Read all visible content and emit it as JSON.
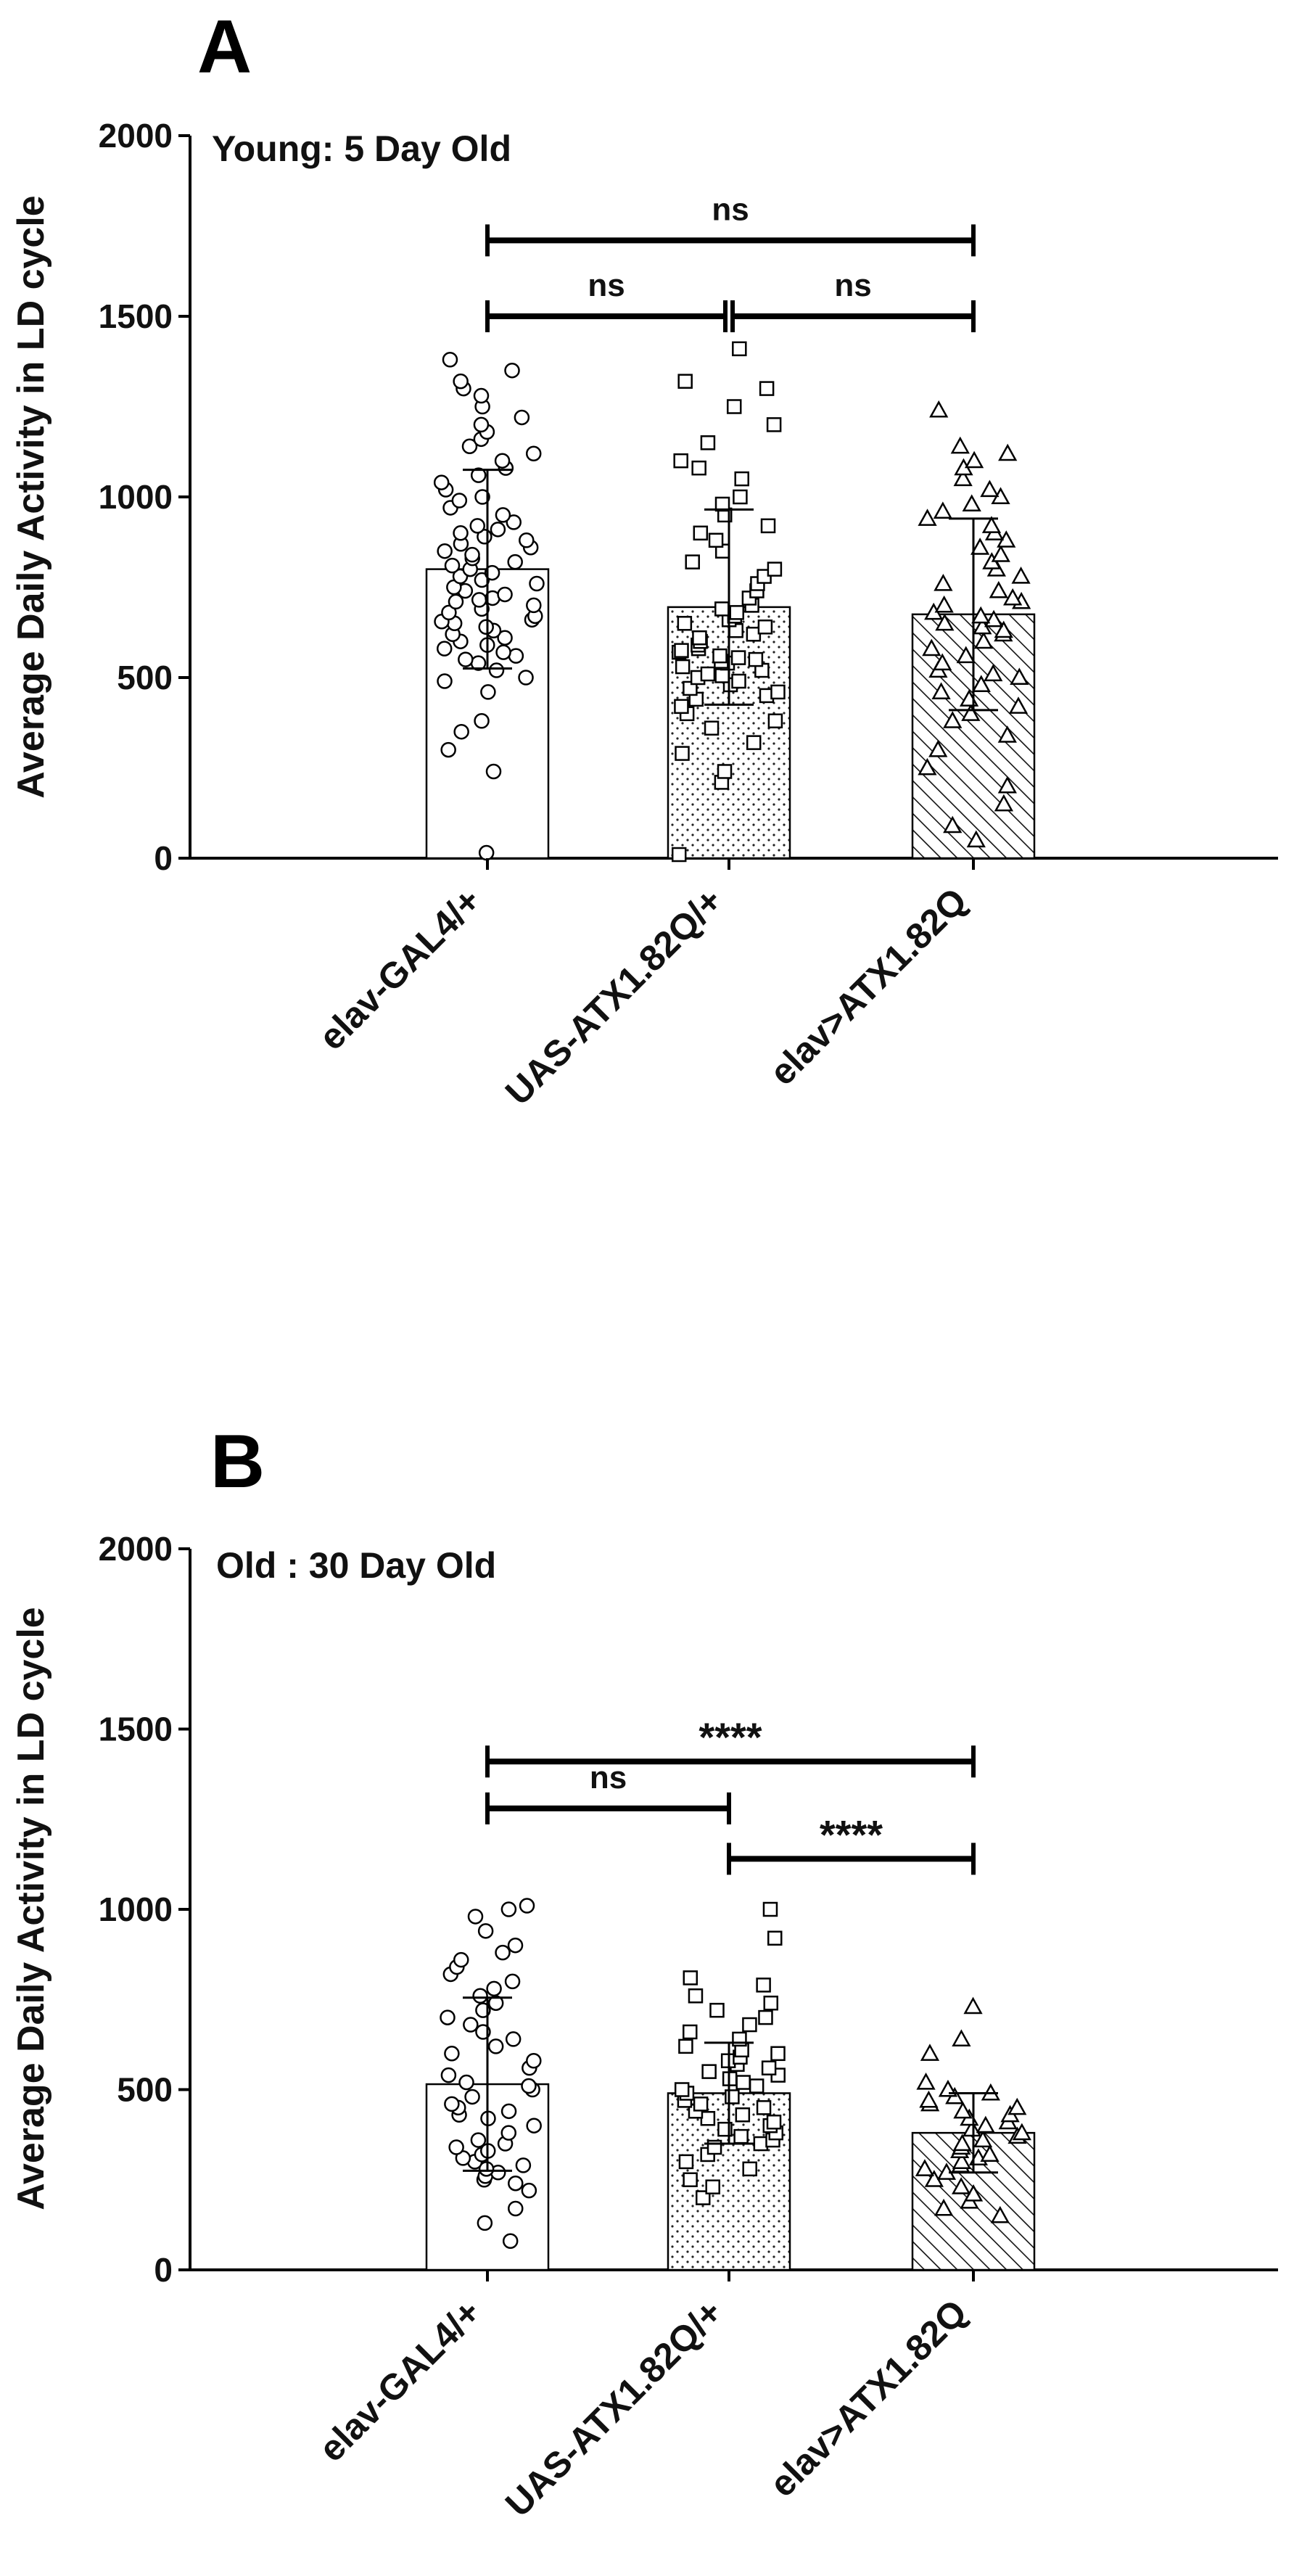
{
  "colors": {
    "ink": "#000000",
    "bar_fill": "#ffffff",
    "background": "#ffffff"
  },
  "chart_data": [
    {
      "type": "bar",
      "panel_label": "A",
      "title": "Young: 5 Day Old",
      "xlabel": "",
      "ylabel": "Average Daily Activity in LD cycle",
      "ylim": [
        0,
        2000
      ],
      "yticks": [
        "0",
        "500",
        "1000",
        "1500",
        "2000"
      ],
      "categories": [
        "elav-GAL4/+",
        "UAS-ATX1.82Q/+",
        "elav>ATX1.82Q"
      ],
      "bar_patterns": [
        "none",
        "dots",
        "hatch"
      ],
      "marker_shapes": [
        "circle",
        "square",
        "triangle"
      ],
      "means": [
        800,
        695,
        675
      ],
      "sd": [
        275,
        270,
        265
      ],
      "points": [
        [
          15,
          240,
          300,
          350,
          380,
          460,
          490,
          500,
          520,
          540,
          550,
          560,
          570,
          580,
          590,
          600,
          610,
          620,
          630,
          640,
          650,
          655,
          660,
          670,
          680,
          690,
          700,
          710,
          715,
          720,
          730,
          740,
          750,
          760,
          770,
          780,
          790,
          800,
          810,
          820,
          830,
          840,
          850,
          860,
          870,
          880,
          890,
          900,
          910,
          920,
          930,
          950,
          970,
          990,
          1000,
          1020,
          1040,
          1060,
          1080,
          1100,
          1120,
          1140,
          1160,
          1180,
          1200,
          1220,
          1250,
          1280,
          1300,
          1320,
          1350,
          1380
        ],
        [
          10,
          210,
          240,
          290,
          320,
          360,
          380,
          400,
          420,
          440,
          450,
          460,
          470,
          480,
          490,
          500,
          505,
          510,
          520,
          530,
          540,
          545,
          550,
          555,
          560,
          570,
          575,
          580,
          590,
          600,
          610,
          620,
          630,
          640,
          650,
          660,
          670,
          680,
          690,
          700,
          720,
          740,
          760,
          780,
          800,
          820,
          850,
          880,
          900,
          920,
          950,
          980,
          1000,
          1050,
          1080,
          1100,
          1150,
          1200,
          1250,
          1300,
          1320,
          1410
        ],
        [
          50,
          90,
          150,
          200,
          250,
          300,
          340,
          380,
          400,
          420,
          440,
          460,
          480,
          500,
          510,
          520,
          540,
          560,
          580,
          600,
          620,
          630,
          640,
          650,
          660,
          670,
          680,
          700,
          710,
          720,
          740,
          760,
          780,
          800,
          820,
          840,
          860,
          880,
          900,
          920,
          940,
          960,
          980,
          1000,
          1020,
          1050,
          1080,
          1100,
          1120,
          1140,
          1240
        ]
      ],
      "comparisons": [
        {
          "pair": [
            0,
            2
          ],
          "y": 1710,
          "label": "ns"
        },
        {
          "pair": [
            0,
            1
          ],
          "y": 1500,
          "label": "ns"
        },
        {
          "pair": [
            1,
            2
          ],
          "y": 1500,
          "label": "ns"
        }
      ]
    },
    {
      "type": "bar",
      "panel_label": "B",
      "title": "Old : 30 Day Old",
      "xlabel": "",
      "ylabel": "Average Daily Activity in LD cycle",
      "ylim": [
        0,
        2000
      ],
      "yticks": [
        "0",
        "500",
        "1000",
        "1500",
        "2000"
      ],
      "categories": [
        "elav-GAL4/+",
        "UAS-ATX1.82Q/+",
        "elav>ATX1.82Q"
      ],
      "bar_patterns": [
        "none",
        "dots",
        "hatch"
      ],
      "marker_shapes": [
        "circle",
        "square",
        "triangle"
      ],
      "means": [
        515,
        490,
        380
      ],
      "sd": [
        240,
        140,
        110
      ],
      "points": [
        [
          80,
          130,
          170,
          220,
          240,
          250,
          260,
          270,
          280,
          290,
          300,
          310,
          320,
          330,
          340,
          350,
          360,
          380,
          400,
          420,
          430,
          440,
          450,
          460,
          480,
          500,
          510,
          520,
          540,
          560,
          580,
          600,
          620,
          640,
          660,
          680,
          700,
          720,
          740,
          760,
          780,
          800,
          820,
          840,
          860,
          880,
          900,
          940,
          980,
          1000,
          1010
        ],
        [
          200,
          230,
          250,
          280,
          300,
          320,
          340,
          350,
          360,
          370,
          380,
          390,
          400,
          410,
          420,
          430,
          440,
          450,
          460,
          470,
          480,
          490,
          500,
          510,
          520,
          530,
          540,
          550,
          560,
          570,
          580,
          590,
          600,
          610,
          620,
          640,
          660,
          680,
          700,
          720,
          740,
          760,
          790,
          810,
          920,
          1000
        ],
        [
          150,
          170,
          190,
          210,
          230,
          250,
          270,
          280,
          290,
          300,
          310,
          320,
          330,
          340,
          350,
          360,
          370,
          380,
          390,
          400,
          410,
          420,
          430,
          440,
          450,
          460,
          470,
          480,
          490,
          500,
          520,
          600,
          640,
          730
        ]
      ],
      "comparisons": [
        {
          "pair": [
            0,
            2
          ],
          "y": 1410,
          "label": "****"
        },
        {
          "pair": [
            0,
            1
          ],
          "y": 1280,
          "label": "ns"
        },
        {
          "pair": [
            1,
            2
          ],
          "y": 1140,
          "label": "****"
        }
      ]
    }
  ]
}
